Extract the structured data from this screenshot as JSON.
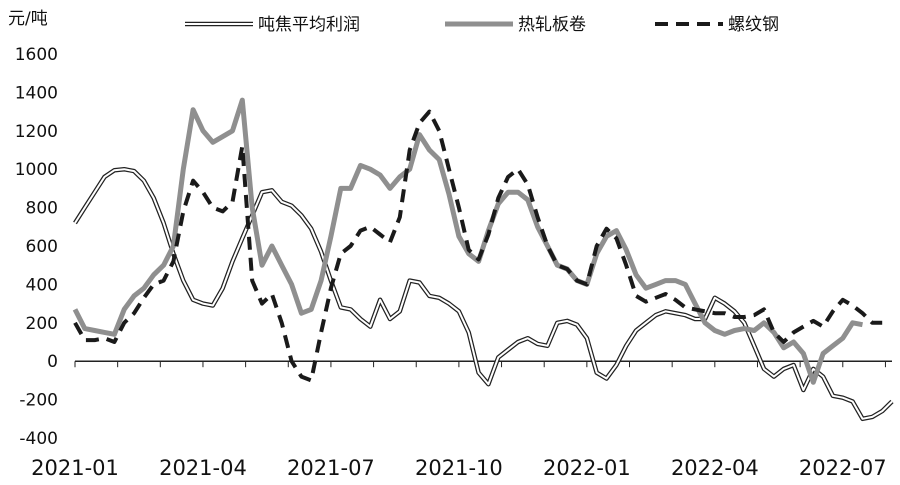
{
  "chart_data": {
    "type": "line",
    "title": "",
    "ylabel": "元/吨",
    "xlabel": "",
    "ylim": [
      -400,
      1600
    ],
    "yticks": [
      1600,
      1400,
      1200,
      1000,
      800,
      600,
      400,
      200,
      0,
      -200,
      -400
    ],
    "xlim": [
      0,
      83
    ],
    "xticks": [
      {
        "x": 0,
        "label": "2021-01"
      },
      {
        "x": 13,
        "label": "2021-04"
      },
      {
        "x": 26,
        "label": "2021-07"
      },
      {
        "x": 39,
        "label": "2021-10"
      },
      {
        "x": 52,
        "label": "2022-01"
      },
      {
        "x": 65,
        "label": "2022-04"
      },
      {
        "x": 78,
        "label": "2022-07"
      }
    ],
    "legend_position": "top",
    "grid": "horizontal",
    "series": [
      {
        "name": "吨焦平均利润",
        "style": "double-outline",
        "values": [
          720,
          800,
          880,
          960,
          995,
          1000,
          990,
          940,
          850,
          720,
          560,
          420,
          320,
          300,
          290,
          380,
          520,
          640,
          760,
          880,
          890,
          830,
          810,
          760,
          690,
          570,
          420,
          280,
          270,
          220,
          180,
          320,
          220,
          260,
          420,
          410,
          340,
          330,
          300,
          260,
          150,
          -60,
          -120,
          20,
          60,
          100,
          120,
          90,
          80,
          200,
          210,
          190,
          120,
          -60,
          -90,
          -20,
          80,
          160,
          200,
          240,
          260,
          250,
          240,
          220,
          220,
          330,
          300,
          260,
          200,
          80,
          -40,
          -80,
          -40,
          -20,
          -150,
          -40,
          -80,
          -180,
          -190,
          -210,
          -300,
          -290,
          -260,
          -210
        ]
      },
      {
        "name": "热轧板卷",
        "style": "thick-gray",
        "values": [
          270,
          170,
          160,
          150,
          140,
          270,
          340,
          380,
          450,
          500,
          600,
          1000,
          1310,
          1200,
          1140,
          1170,
          1200,
          1360,
          800,
          500,
          600,
          500,
          400,
          250,
          270,
          420,
          650,
          900,
          900,
          1020,
          1000,
          970,
          900,
          960,
          1000,
          1180,
          1100,
          1050,
          870,
          650,
          560,
          520,
          680,
          820,
          880,
          880,
          840,
          700,
          600,
          500,
          480,
          420,
          400,
          560,
          650,
          680,
          580,
          450,
          380,
          400,
          420,
          420,
          400,
          300,
          200,
          160,
          140,
          160,
          170,
          160,
          200,
          150,
          70,
          100,
          40,
          -110,
          40,
          80,
          120,
          200,
          190
        ]
      },
      {
        "name": "螺纹钢",
        "style": "dashed-black",
        "values": [
          200,
          110,
          110,
          120,
          100,
          200,
          250,
          330,
          400,
          420,
          520,
          780,
          940,
          880,
          800,
          780,
          830,
          1120,
          420,
          300,
          350,
          200,
          0,
          -80,
          -100,
          150,
          380,
          560,
          600,
          680,
          700,
          660,
          620,
          750,
          1100,
          1240,
          1300,
          1200,
          1000,
          800,
          580,
          530,
          660,
          850,
          960,
          1000,
          920,
          750,
          600,
          500,
          480,
          420,
          400,
          600,
          690,
          640,
          500,
          340,
          310,
          330,
          350,
          320,
          280,
          270,
          260,
          250,
          250,
          230,
          230,
          240,
          270,
          150,
          100,
          150,
          180,
          210,
          180,
          260,
          320,
          290,
          250,
          200,
          200
        ]
      }
    ]
  }
}
